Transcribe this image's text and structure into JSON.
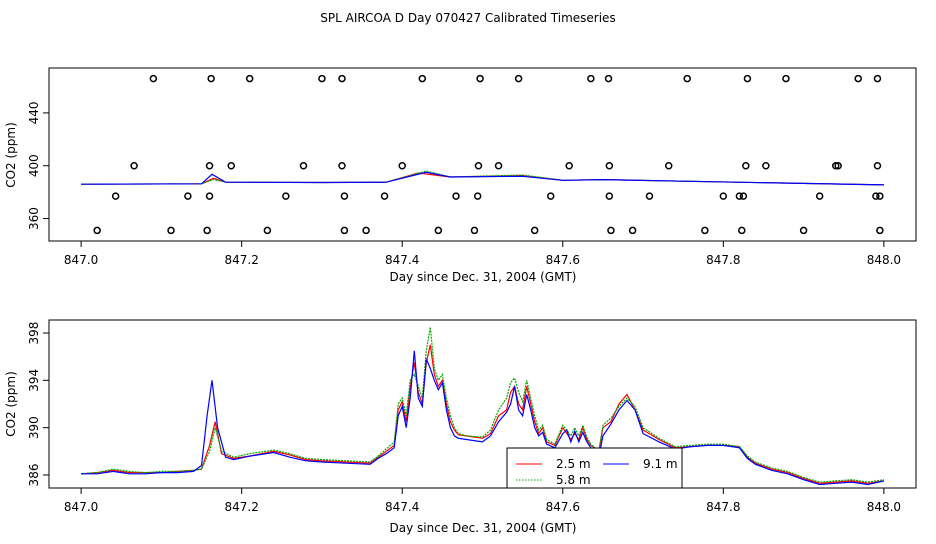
{
  "title": "SPL AIRCOA D  Day 070427  Calibrated Timeseries",
  "chart_data": [
    {
      "type": "line",
      "name": "top-panel",
      "xlabel": "Day since Dec. 31, 2004 (GMT)",
      "ylabel": "CO2 (ppm)",
      "xlim": [
        846.96,
        848.04
      ],
      "ylim": [
        343,
        474
      ],
      "xticks": [
        "847.0",
        "847.2",
        "847.4",
        "847.6",
        "847.8",
        "848.0"
      ],
      "xtick_values": [
        847.0,
        847.2,
        847.4,
        847.6,
        847.8,
        848.0
      ],
      "yticks": [
        "360",
        "400",
        "440"
      ],
      "ytick_values": [
        360,
        400,
        440
      ],
      "series": [
        {
          "name": "2.5 m",
          "color": "#ff0000",
          "x": [
            847.0,
            847.15,
            847.165,
            847.18,
            847.3,
            847.38,
            847.42,
            847.46,
            847.55,
            847.6,
            847.65,
            847.75,
            848.0
          ],
          "y": [
            386.0,
            386.3,
            390.5,
            387.5,
            387.3,
            387.5,
            394.5,
            391.5,
            392.5,
            389.0,
            389.5,
            388.3,
            385.5
          ]
        },
        {
          "name": "5.8 m",
          "color": "#00aa00",
          "x": [
            847.0,
            847.15,
            847.165,
            847.18,
            847.3,
            847.38,
            847.43,
            847.46,
            847.55,
            847.6,
            847.65,
            847.75,
            848.0
          ],
          "y": [
            386.0,
            386.3,
            389.5,
            387.6,
            387.3,
            387.5,
            396.0,
            391.5,
            393.0,
            389.0,
            389.5,
            388.3,
            385.5
          ]
        },
        {
          "name": "9.1 m",
          "color": "#0000ff",
          "x": [
            847.0,
            847.15,
            847.163,
            847.18,
            847.3,
            847.38,
            847.43,
            847.46,
            847.55,
            847.6,
            847.65,
            847.75,
            848.0
          ],
          "y": [
            386.0,
            386.3,
            393.5,
            387.5,
            387.3,
            387.5,
            395.0,
            391.5,
            392.0,
            389.0,
            389.5,
            388.3,
            385.5
          ]
        }
      ],
      "points": {
        "x": [
          847.09,
          847.162,
          847.21,
          847.3,
          847.325,
          847.425,
          847.497,
          847.545,
          847.635,
          847.657,
          847.755,
          847.83,
          847.878,
          847.968,
          847.992,
          847.066,
          847.16,
          847.187,
          847.277,
          847.325,
          847.4,
          847.495,
          847.52,
          847.608,
          847.658,
          847.732,
          847.828,
          847.853,
          847.94,
          847.943,
          847.992,
          847.043,
          847.133,
          847.16,
          847.255,
          847.328,
          847.378,
          847.467,
          847.494,
          847.585,
          847.658,
          847.708,
          847.8,
          847.82,
          847.825,
          847.92,
          847.99,
          847.995,
          847.02,
          847.112,
          847.157,
          847.232,
          847.328,
          847.355,
          847.445,
          847.49,
          847.565,
          847.66,
          847.687,
          847.777,
          847.823,
          847.9,
          847.995
        ],
        "y": [
          466,
          466,
          466,
          466,
          466,
          466,
          466,
          466,
          466,
          466,
          466,
          466,
          466,
          466,
          466,
          400,
          400,
          400,
          400,
          400,
          400,
          400,
          400,
          400,
          400,
          400,
          400,
          400,
          400,
          400,
          400,
          377,
          377,
          377,
          377,
          377,
          377,
          377,
          377,
          377,
          377,
          377,
          377,
          377,
          377,
          377,
          377,
          377,
          351,
          351,
          351,
          351,
          351,
          351,
          351,
          351,
          351,
          351,
          351,
          351,
          351,
          351,
          351
        ]
      }
    },
    {
      "type": "line",
      "name": "bottom-panel",
      "xlabel": "Day since Dec. 31, 2004 (GMT)",
      "ylabel": "CO2 (ppm)",
      "xlim": [
        846.96,
        848.04
      ],
      "ylim": [
        384.9,
        399.1
      ],
      "xticks": [
        "847.0",
        "847.2",
        "847.4",
        "847.6",
        "847.8",
        "848.0"
      ],
      "xtick_values": [
        847.0,
        847.2,
        847.4,
        847.6,
        847.8,
        848.0
      ],
      "yticks": [
        "386",
        "390",
        "394",
        "398"
      ],
      "ytick_values": [
        386,
        390,
        394,
        398
      ],
      "legend": {
        "position": "bottom-center",
        "entries": [
          "2.5 m",
          "9.1 m",
          "5.8 m"
        ]
      },
      "series": [
        {
          "name": "2.5 m",
          "color": "#ff0000",
          "x": [
            847.0,
            847.02,
            847.04,
            847.06,
            847.08,
            847.1,
            847.12,
            847.14,
            847.15,
            847.16,
            847.167,
            847.175,
            847.19,
            847.21,
            847.24,
            847.26,
            847.28,
            847.3,
            847.33,
            847.36,
            847.37,
            847.38,
            847.39,
            847.395,
            847.4,
            847.405,
            847.41,
            847.415,
            847.42,
            847.425,
            847.43,
            847.435,
            847.44,
            847.445,
            847.45,
            847.455,
            847.46,
            847.465,
            847.47,
            847.48,
            847.5,
            847.51,
            847.52,
            847.53,
            847.535,
            847.54,
            847.545,
            847.55,
            847.555,
            847.56,
            847.565,
            847.57,
            847.575,
            847.58,
            847.59,
            847.6,
            847.605,
            847.61,
            847.615,
            847.62,
            847.625,
            847.63,
            847.635,
            847.64,
            847.645,
            847.65,
            847.66,
            847.67,
            847.68,
            847.69,
            847.7,
            847.72,
            847.74,
            847.76,
            847.78,
            847.8,
            847.82,
            847.83,
            847.84,
            847.86,
            847.88,
            847.9,
            847.92,
            847.94,
            847.96,
            847.98,
            848.0
          ],
          "y": [
            386.1,
            386.2,
            386.4,
            386.2,
            386.2,
            386.2,
            386.3,
            386.4,
            386.5,
            388.5,
            390.5,
            387.8,
            387.4,
            387.6,
            388.0,
            387.7,
            387.3,
            387.2,
            387.1,
            387.0,
            387.5,
            388.0,
            388.5,
            391.5,
            392.2,
            390.5,
            393.5,
            395.5,
            393.0,
            392.0,
            395.5,
            397.0,
            394.5,
            393.5,
            394.0,
            392.0,
            390.5,
            389.8,
            389.4,
            389.3,
            389.1,
            389.5,
            391.0,
            391.5,
            393.0,
            393.5,
            392.0,
            391.5,
            393.5,
            392.0,
            390.5,
            389.5,
            390.0,
            388.8,
            388.5,
            390.0,
            389.5,
            389.0,
            389.5,
            389.0,
            390.0,
            389.0,
            388.5,
            388.3,
            388.0,
            390.0,
            390.5,
            392.0,
            392.8,
            391.5,
            389.8,
            389.0,
            388.3,
            388.4,
            388.5,
            388.5,
            388.4,
            387.5,
            387.0,
            386.5,
            386.2,
            385.7,
            385.3,
            385.4,
            385.5,
            385.3,
            385.5
          ]
        },
        {
          "name": "5.8 m",
          "color": "#00aa00",
          "x": [
            847.0,
            847.02,
            847.04,
            847.06,
            847.08,
            847.1,
            847.12,
            847.14,
            847.15,
            847.16,
            847.167,
            847.175,
            847.19,
            847.21,
            847.24,
            847.26,
            847.28,
            847.3,
            847.33,
            847.36,
            847.37,
            847.38,
            847.39,
            847.395,
            847.4,
            847.405,
            847.41,
            847.415,
            847.42,
            847.425,
            847.43,
            847.435,
            847.44,
            847.445,
            847.45,
            847.455,
            847.46,
            847.465,
            847.47,
            847.48,
            847.5,
            847.51,
            847.52,
            847.53,
            847.535,
            847.54,
            847.545,
            847.55,
            847.555,
            847.56,
            847.565,
            847.57,
            847.575,
            847.58,
            847.59,
            847.6,
            847.605,
            847.61,
            847.615,
            847.62,
            847.625,
            847.63,
            847.635,
            847.64,
            847.645,
            847.65,
            847.66,
            847.67,
            847.68,
            847.69,
            847.7,
            847.72,
            847.74,
            847.76,
            847.78,
            847.8,
            847.82,
            847.83,
            847.84,
            847.86,
            847.88,
            847.9,
            847.92,
            847.94,
            847.96,
            847.98,
            848.0
          ],
          "y": [
            386.1,
            386.2,
            386.5,
            386.3,
            386.2,
            386.3,
            386.3,
            386.4,
            386.5,
            388.0,
            390.0,
            388.0,
            387.5,
            387.8,
            388.1,
            387.8,
            387.4,
            387.3,
            387.2,
            387.1,
            387.6,
            388.2,
            388.8,
            392.0,
            392.5,
            391.0,
            394.0,
            394.5,
            393.5,
            392.5,
            396.5,
            398.5,
            395.0,
            394.0,
            394.5,
            392.5,
            391.0,
            390.0,
            389.5,
            389.3,
            389.2,
            389.8,
            391.5,
            392.5,
            393.8,
            394.2,
            393.0,
            392.2,
            394.0,
            392.5,
            391.0,
            389.8,
            390.2,
            389.0,
            388.6,
            390.2,
            389.8,
            389.3,
            390.0,
            389.3,
            390.2,
            389.2,
            388.6,
            388.3,
            388.1,
            390.2,
            390.8,
            391.8,
            392.5,
            391.8,
            390.0,
            389.1,
            388.4,
            388.5,
            388.6,
            388.6,
            388.4,
            387.6,
            387.1,
            386.6,
            386.3,
            385.8,
            385.4,
            385.5,
            385.6,
            385.4,
            385.6
          ]
        },
        {
          "name": "9.1 m",
          "color": "#0000ff",
          "x": [
            847.0,
            847.02,
            847.04,
            847.06,
            847.08,
            847.1,
            847.12,
            847.14,
            847.15,
            847.157,
            847.163,
            847.17,
            847.18,
            847.19,
            847.21,
            847.24,
            847.26,
            847.28,
            847.3,
            847.33,
            847.36,
            847.37,
            847.38,
            847.39,
            847.395,
            847.4,
            847.405,
            847.41,
            847.415,
            847.42,
            847.425,
            847.43,
            847.435,
            847.44,
            847.445,
            847.45,
            847.455,
            847.46,
            847.465,
            847.47,
            847.48,
            847.5,
            847.51,
            847.52,
            847.53,
            847.535,
            847.54,
            847.545,
            847.55,
            847.555,
            847.56,
            847.565,
            847.57,
            847.575,
            847.58,
            847.59,
            847.6,
            847.605,
            847.61,
            847.615,
            847.62,
            847.625,
            847.63,
            847.635,
            847.64,
            847.645,
            847.65,
            847.66,
            847.67,
            847.68,
            847.69,
            847.7,
            847.72,
            847.74,
            847.76,
            847.78,
            847.8,
            847.82,
            847.83,
            847.84,
            847.86,
            847.88,
            847.9,
            847.92,
            847.94,
            847.96,
            847.98,
            848.0
          ],
          "y": [
            386.1,
            386.1,
            386.3,
            386.1,
            386.1,
            386.2,
            386.2,
            386.3,
            386.8,
            391.0,
            394.0,
            390.0,
            387.5,
            387.3,
            387.6,
            387.9,
            387.5,
            387.2,
            387.1,
            387.0,
            386.9,
            387.4,
            387.8,
            388.3,
            391.0,
            391.8,
            390.0,
            392.5,
            396.5,
            392.5,
            391.8,
            395.8,
            395.0,
            394.0,
            393.2,
            393.8,
            391.5,
            390.0,
            389.3,
            389.1,
            389.0,
            388.8,
            389.3,
            390.5,
            391.3,
            392.0,
            393.5,
            391.5,
            391.0,
            392.8,
            391.5,
            390.0,
            389.3,
            389.6,
            388.6,
            388.3,
            389.5,
            389.8,
            388.8,
            389.7,
            388.8,
            389.6,
            388.8,
            388.3,
            388.0,
            387.5,
            389.3,
            390.3,
            391.5,
            392.3,
            391.5,
            389.5,
            388.8,
            388.2,
            388.4,
            388.5,
            388.5,
            388.3,
            387.4,
            386.9,
            386.4,
            386.1,
            385.6,
            385.2,
            385.3,
            385.4,
            385.2,
            385.5
          ]
        }
      ]
    }
  ]
}
